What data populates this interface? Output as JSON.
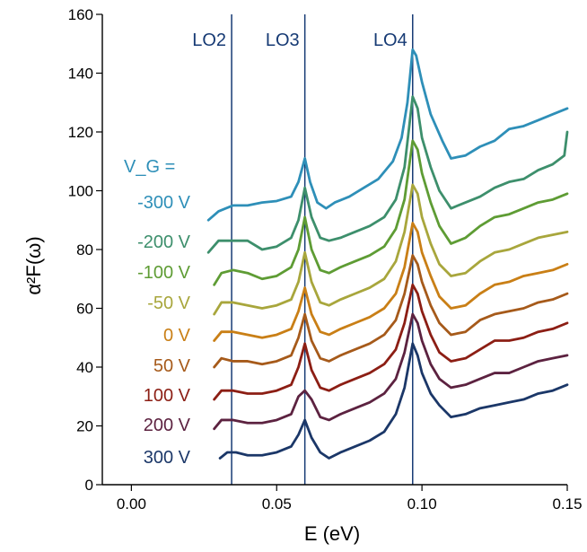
{
  "chart_data": {
    "type": "line",
    "title": "",
    "xlabel": "E (eV)",
    "ylabel": "α²F(ω)",
    "xlim": [
      -0.01,
      0.15
    ],
    "ylim": [
      0,
      160
    ],
    "x_ticks": [
      0.0,
      0.05,
      0.1,
      0.15
    ],
    "x_tick_labels": [
      "0.00",
      "0.05",
      "0.10",
      "0.15"
    ],
    "y_ticks": [
      0,
      20,
      40,
      60,
      80,
      100,
      120,
      140,
      160
    ],
    "y_tick_labels": [
      "0",
      "20",
      "40",
      "60",
      "80",
      "100",
      "120",
      "140",
      "160"
    ],
    "legend_title": "V_G =",
    "markers": [
      {
        "name": "LO2",
        "x": 0.0345
      },
      {
        "name": "LO3",
        "x": 0.0597
      },
      {
        "name": "LO4",
        "x": 0.0968
      }
    ],
    "x_domain": [
      0.025,
      0.15
    ],
    "series": [
      {
        "name": "-300 V",
        "color": "#2e8fb8",
        "points": [
          [
            0.0265,
            90
          ],
          [
            0.03,
            93
          ],
          [
            0.035,
            95
          ],
          [
            0.04,
            95
          ],
          [
            0.045,
            96
          ],
          [
            0.05,
            96.5
          ],
          [
            0.055,
            98
          ],
          [
            0.0575,
            103
          ],
          [
            0.0597,
            111
          ],
          [
            0.0615,
            103
          ],
          [
            0.064,
            96
          ],
          [
            0.067,
            94
          ],
          [
            0.07,
            96
          ],
          [
            0.075,
            98
          ],
          [
            0.08,
            101
          ],
          [
            0.085,
            104
          ],
          [
            0.09,
            110
          ],
          [
            0.093,
            118
          ],
          [
            0.095,
            130
          ],
          [
            0.0968,
            148
          ],
          [
            0.098,
            146
          ],
          [
            0.1,
            137
          ],
          [
            0.103,
            126
          ],
          [
            0.107,
            117
          ],
          [
            0.11,
            111
          ],
          [
            0.115,
            112
          ],
          [
            0.12,
            115
          ],
          [
            0.125,
            117
          ],
          [
            0.13,
            121
          ],
          [
            0.135,
            122
          ],
          [
            0.14,
            124
          ],
          [
            0.145,
            126
          ],
          [
            0.15,
            128
          ]
        ]
      },
      {
        "name": "-200 V",
        "color": "#3d8f6c",
        "points": [
          [
            0.0265,
            79
          ],
          [
            0.03,
            83
          ],
          [
            0.035,
            83
          ],
          [
            0.04,
            83
          ],
          [
            0.045,
            80
          ],
          [
            0.05,
            81
          ],
          [
            0.055,
            84
          ],
          [
            0.0575,
            90
          ],
          [
            0.0597,
            101
          ],
          [
            0.062,
            91
          ],
          [
            0.065,
            84
          ],
          [
            0.068,
            83
          ],
          [
            0.072,
            84
          ],
          [
            0.077,
            86
          ],
          [
            0.082,
            88
          ],
          [
            0.087,
            91
          ],
          [
            0.091,
            97
          ],
          [
            0.094,
            108
          ],
          [
            0.0968,
            132
          ],
          [
            0.0985,
            128
          ],
          [
            0.1,
            118
          ],
          [
            0.103,
            108
          ],
          [
            0.106,
            100
          ],
          [
            0.11,
            94
          ],
          [
            0.115,
            96
          ],
          [
            0.12,
            98
          ],
          [
            0.125,
            101
          ],
          [
            0.13,
            103
          ],
          [
            0.135,
            104
          ],
          [
            0.14,
            107
          ],
          [
            0.145,
            109
          ],
          [
            0.149,
            112
          ],
          [
            0.15,
            120
          ]
        ]
      },
      {
        "name": "-100 V",
        "color": "#5e9c34",
        "points": [
          [
            0.0285,
            68
          ],
          [
            0.031,
            72
          ],
          [
            0.035,
            73
          ],
          [
            0.04,
            72
          ],
          [
            0.045,
            70
          ],
          [
            0.05,
            71
          ],
          [
            0.055,
            74
          ],
          [
            0.0575,
            80
          ],
          [
            0.0597,
            91
          ],
          [
            0.062,
            80
          ],
          [
            0.065,
            73
          ],
          [
            0.068,
            72
          ],
          [
            0.072,
            74
          ],
          [
            0.077,
            76
          ],
          [
            0.082,
            78
          ],
          [
            0.087,
            81
          ],
          [
            0.091,
            87
          ],
          [
            0.094,
            97
          ],
          [
            0.0968,
            117
          ],
          [
            0.0985,
            114
          ],
          [
            0.1,
            106
          ],
          [
            0.103,
            96
          ],
          [
            0.106,
            88
          ],
          [
            0.11,
            82
          ],
          [
            0.115,
            84
          ],
          [
            0.12,
            88
          ],
          [
            0.125,
            91
          ],
          [
            0.13,
            92
          ],
          [
            0.135,
            94
          ],
          [
            0.14,
            96
          ],
          [
            0.145,
            97
          ],
          [
            0.15,
            99
          ]
        ]
      },
      {
        "name": "-50 V",
        "color": "#a8a63c",
        "points": [
          [
            0.0285,
            58
          ],
          [
            0.031,
            62
          ],
          [
            0.035,
            62
          ],
          [
            0.04,
            61
          ],
          [
            0.045,
            60
          ],
          [
            0.05,
            61
          ],
          [
            0.055,
            63
          ],
          [
            0.0575,
            69
          ],
          [
            0.0597,
            79
          ],
          [
            0.062,
            69
          ],
          [
            0.065,
            62
          ],
          [
            0.068,
            61
          ],
          [
            0.072,
            63
          ],
          [
            0.077,
            65
          ],
          [
            0.082,
            67
          ],
          [
            0.087,
            70
          ],
          [
            0.091,
            76
          ],
          [
            0.094,
            86
          ],
          [
            0.0968,
            102
          ],
          [
            0.0985,
            99
          ],
          [
            0.1,
            91
          ],
          [
            0.103,
            82
          ],
          [
            0.106,
            75
          ],
          [
            0.11,
            71
          ],
          [
            0.115,
            72
          ],
          [
            0.12,
            76
          ],
          [
            0.125,
            79
          ],
          [
            0.13,
            80
          ],
          [
            0.135,
            82
          ],
          [
            0.14,
            84
          ],
          [
            0.145,
            85
          ],
          [
            0.15,
            86
          ]
        ]
      },
      {
        "name": "0 V",
        "color": "#c97f16",
        "points": [
          [
            0.0285,
            49
          ],
          [
            0.031,
            52
          ],
          [
            0.035,
            52
          ],
          [
            0.04,
            51
          ],
          [
            0.045,
            50
          ],
          [
            0.05,
            51
          ],
          [
            0.055,
            53
          ],
          [
            0.0575,
            59
          ],
          [
            0.0597,
            67
          ],
          [
            0.062,
            58
          ],
          [
            0.065,
            52
          ],
          [
            0.068,
            51
          ],
          [
            0.072,
            53
          ],
          [
            0.077,
            55
          ],
          [
            0.082,
            57
          ],
          [
            0.087,
            60
          ],
          [
            0.091,
            65
          ],
          [
            0.094,
            74
          ],
          [
            0.0968,
            89
          ],
          [
            0.0985,
            86
          ],
          [
            0.1,
            79
          ],
          [
            0.103,
            71
          ],
          [
            0.106,
            64
          ],
          [
            0.11,
            60
          ],
          [
            0.115,
            61
          ],
          [
            0.12,
            65
          ],
          [
            0.125,
            68
          ],
          [
            0.13,
            69
          ],
          [
            0.135,
            71
          ],
          [
            0.14,
            72
          ],
          [
            0.145,
            73
          ],
          [
            0.15,
            75
          ]
        ]
      },
      {
        "name": "50 V",
        "color": "#a65a1a",
        "points": [
          [
            0.0285,
            40
          ],
          [
            0.031,
            43
          ],
          [
            0.035,
            42
          ],
          [
            0.04,
            42
          ],
          [
            0.045,
            41
          ],
          [
            0.05,
            42
          ],
          [
            0.055,
            44
          ],
          [
            0.0575,
            50
          ],
          [
            0.0597,
            58
          ],
          [
            0.062,
            49
          ],
          [
            0.065,
            43
          ],
          [
            0.068,
            42
          ],
          [
            0.072,
            44
          ],
          [
            0.077,
            46
          ],
          [
            0.082,
            48
          ],
          [
            0.087,
            51
          ],
          [
            0.091,
            56
          ],
          [
            0.094,
            65
          ],
          [
            0.0968,
            78
          ],
          [
            0.0985,
            75
          ],
          [
            0.1,
            69
          ],
          [
            0.103,
            61
          ],
          [
            0.106,
            55
          ],
          [
            0.11,
            51
          ],
          [
            0.115,
            52
          ],
          [
            0.12,
            56
          ],
          [
            0.125,
            58
          ],
          [
            0.13,
            59
          ],
          [
            0.135,
            60
          ],
          [
            0.14,
            62
          ],
          [
            0.145,
            63
          ],
          [
            0.15,
            65
          ]
        ]
      },
      {
        "name": "100 V",
        "color": "#8c1e14",
        "points": [
          [
            0.0285,
            29
          ],
          [
            0.031,
            32
          ],
          [
            0.035,
            32
          ],
          [
            0.04,
            31
          ],
          [
            0.045,
            31
          ],
          [
            0.05,
            32
          ],
          [
            0.055,
            34
          ],
          [
            0.0575,
            40
          ],
          [
            0.0597,
            48
          ],
          [
            0.062,
            39
          ],
          [
            0.065,
            33
          ],
          [
            0.068,
            32
          ],
          [
            0.072,
            34
          ],
          [
            0.077,
            36
          ],
          [
            0.082,
            38
          ],
          [
            0.087,
            41
          ],
          [
            0.091,
            46
          ],
          [
            0.094,
            55
          ],
          [
            0.0968,
            68
          ],
          [
            0.0985,
            65
          ],
          [
            0.1,
            59
          ],
          [
            0.103,
            51
          ],
          [
            0.106,
            45
          ],
          [
            0.11,
            42
          ],
          [
            0.115,
            43
          ],
          [
            0.12,
            46
          ],
          [
            0.125,
            49
          ],
          [
            0.13,
            49
          ],
          [
            0.135,
            50
          ],
          [
            0.14,
            52
          ],
          [
            0.145,
            53
          ],
          [
            0.15,
            55
          ]
        ]
      },
      {
        "name": "200 V",
        "color": "#5c2240",
        "points": [
          [
            0.0285,
            19
          ],
          [
            0.031,
            22
          ],
          [
            0.035,
            22
          ],
          [
            0.04,
            21
          ],
          [
            0.045,
            21
          ],
          [
            0.05,
            22
          ],
          [
            0.055,
            24
          ],
          [
            0.0575,
            30
          ],
          [
            0.0597,
            32
          ],
          [
            0.062,
            29
          ],
          [
            0.065,
            23
          ],
          [
            0.068,
            22
          ],
          [
            0.072,
            24
          ],
          [
            0.077,
            26
          ],
          [
            0.082,
            28
          ],
          [
            0.087,
            31
          ],
          [
            0.091,
            36
          ],
          [
            0.094,
            45
          ],
          [
            0.0968,
            58
          ],
          [
            0.0985,
            55
          ],
          [
            0.1,
            49
          ],
          [
            0.103,
            41
          ],
          [
            0.106,
            36
          ],
          [
            0.11,
            33
          ],
          [
            0.115,
            34
          ],
          [
            0.12,
            36
          ],
          [
            0.125,
            38
          ],
          [
            0.13,
            38
          ],
          [
            0.135,
            40
          ],
          [
            0.14,
            42
          ],
          [
            0.145,
            43
          ],
          [
            0.15,
            44
          ]
        ]
      },
      {
        "name": "300 V",
        "color": "#1b3768",
        "points": [
          [
            0.0305,
            9
          ],
          [
            0.033,
            11
          ],
          [
            0.036,
            11
          ],
          [
            0.04,
            10
          ],
          [
            0.045,
            10
          ],
          [
            0.05,
            11
          ],
          [
            0.055,
            13
          ],
          [
            0.0575,
            17
          ],
          [
            0.0597,
            22
          ],
          [
            0.062,
            16
          ],
          [
            0.065,
            11
          ],
          [
            0.068,
            9
          ],
          [
            0.072,
            11
          ],
          [
            0.077,
            13
          ],
          [
            0.082,
            15
          ],
          [
            0.087,
            18
          ],
          [
            0.091,
            24
          ],
          [
            0.094,
            33
          ],
          [
            0.0968,
            48
          ],
          [
            0.0985,
            44
          ],
          [
            0.1,
            38
          ],
          [
            0.103,
            31
          ],
          [
            0.106,
            27
          ],
          [
            0.11,
            23
          ],
          [
            0.115,
            24
          ],
          [
            0.12,
            26
          ],
          [
            0.125,
            27
          ],
          [
            0.13,
            28
          ],
          [
            0.135,
            29
          ],
          [
            0.14,
            31
          ],
          [
            0.145,
            32
          ],
          [
            0.15,
            34
          ]
        ]
      }
    ]
  }
}
